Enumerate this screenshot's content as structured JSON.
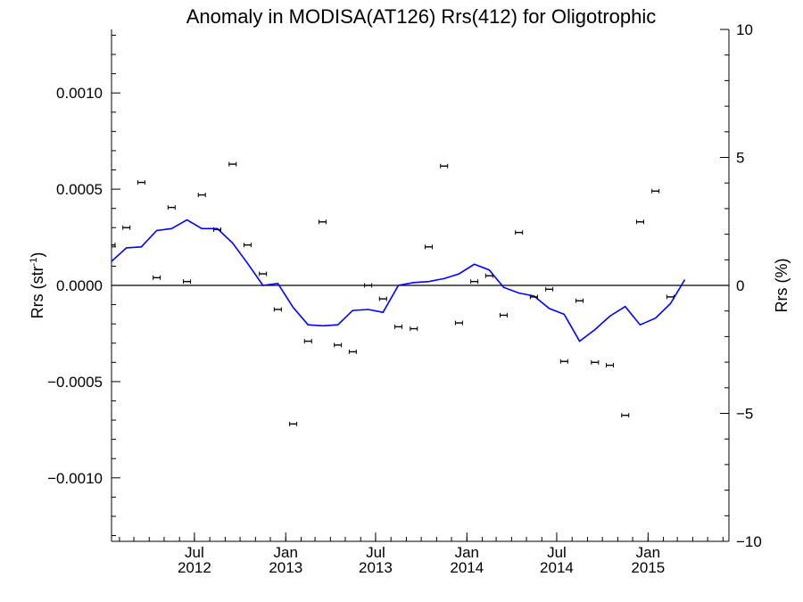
{
  "chart_data": {
    "type": "scatter",
    "title": "Anomaly in MODISA(AT126) Rrs(412) for Oligotrophic",
    "ylabel_main": "Rrs (str",
    "ylabel_sup": "-1",
    "ylabel_close": ")",
    "ylabel_right": "Rrs (%)",
    "ylim": [
      -0.00133,
      0.00133
    ],
    "ylim_right": [
      -10.0,
      10.0
    ],
    "xlim": [
      "2012-01-16",
      "2015-06-13"
    ],
    "left_ticks": [
      {
        "value": 0.001,
        "label": "0.0010"
      },
      {
        "value": 0.0005,
        "label": "0.0005"
      },
      {
        "value": 0.0,
        "label": "0.0000"
      },
      {
        "value": -0.0005,
        "label": "−0.0005"
      },
      {
        "value": -0.001,
        "label": "−0.0010"
      }
    ],
    "right_ticks": [
      {
        "value": 10,
        "label": "10"
      },
      {
        "value": 5,
        "label": "5"
      },
      {
        "value": 0,
        "label": "0"
      },
      {
        "value": -5,
        "label": "−5"
      },
      {
        "value": -10,
        "label": "−10"
      }
    ],
    "x_ticks": [
      {
        "date": "2012-07-01",
        "month": "Jul",
        "year": "2012"
      },
      {
        "date": "2013-01-01",
        "month": "Jan",
        "year": "2013"
      },
      {
        "date": "2013-07-01",
        "month": "Jul",
        "year": "2013"
      },
      {
        "date": "2014-01-01",
        "month": "Jan",
        "year": "2014"
      },
      {
        "date": "2014-07-01",
        "month": "Jul",
        "year": "2014"
      },
      {
        "date": "2015-01-01",
        "month": "Jan",
        "year": "2015"
      }
    ],
    "zero_line": 0.0,
    "series": [
      {
        "kind": "points_with_error_bars",
        "color": "#000000",
        "points": [
          {
            "x": "2012-01-16",
            "y": 0.00021
          },
          {
            "x": "2012-02-15",
            "y": 0.0003
          },
          {
            "x": "2012-03-16",
            "y": 0.000535
          },
          {
            "x": "2012-04-16",
            "y": 4e-05
          },
          {
            "x": "2012-05-16",
            "y": 0.000405
          },
          {
            "x": "2012-06-16",
            "y": 2e-05
          },
          {
            "x": "2012-07-16",
            "y": 0.00047
          },
          {
            "x": "2012-08-16",
            "y": 0.00029
          },
          {
            "x": "2012-09-16",
            "y": 0.00063
          },
          {
            "x": "2012-10-16",
            "y": 0.00021
          },
          {
            "x": "2012-11-16",
            "y": 6e-05
          },
          {
            "x": "2012-12-16",
            "y": -0.000125
          },
          {
            "x": "2013-01-16",
            "y": -0.00072
          },
          {
            "x": "2013-02-15",
            "y": -0.00029
          },
          {
            "x": "2013-03-16",
            "y": 0.00033
          },
          {
            "x": "2013-04-16",
            "y": -0.00031
          },
          {
            "x": "2013-05-16",
            "y": -0.000345
          },
          {
            "x": "2013-06-16",
            "y": 0.0
          },
          {
            "x": "2013-07-16",
            "y": -7e-05
          },
          {
            "x": "2013-08-16",
            "y": -0.000215
          },
          {
            "x": "2013-09-16",
            "y": -0.000225
          },
          {
            "x": "2013-10-16",
            "y": 0.0002
          },
          {
            "x": "2013-11-16",
            "y": 0.00062
          },
          {
            "x": "2013-12-16",
            "y": -0.000195
          },
          {
            "x": "2014-01-16",
            "y": 2e-05
          },
          {
            "x": "2014-02-15",
            "y": 5e-05
          },
          {
            "x": "2014-03-16",
            "y": -0.000155
          },
          {
            "x": "2014-04-16",
            "y": 0.000275
          },
          {
            "x": "2014-05-16",
            "y": -6e-05
          },
          {
            "x": "2014-06-16",
            "y": -2e-05
          },
          {
            "x": "2014-07-16",
            "y": -0.000395
          },
          {
            "x": "2014-08-16",
            "y": -8e-05
          },
          {
            "x": "2014-09-16",
            "y": -0.0004
          },
          {
            "x": "2014-10-16",
            "y": -0.000415
          },
          {
            "x": "2014-11-16",
            "y": -0.000675
          },
          {
            "x": "2014-12-16",
            "y": 0.00033
          },
          {
            "x": "2015-01-16",
            "y": 0.00049
          },
          {
            "x": "2015-02-15",
            "y": -6e-05
          }
        ]
      },
      {
        "kind": "line",
        "color": "#0000ff",
        "points": [
          {
            "x": "2012-01-16",
            "y": 0.000125
          },
          {
            "x": "2012-02-15",
            "y": 0.000195
          },
          {
            "x": "2012-03-16",
            "y": 0.0002
          },
          {
            "x": "2012-04-16",
            "y": 0.000285
          },
          {
            "x": "2012-05-16",
            "y": 0.000295
          },
          {
            "x": "2012-06-16",
            "y": 0.00034
          },
          {
            "x": "2012-07-16",
            "y": 0.000295
          },
          {
            "x": "2012-08-16",
            "y": 0.000295
          },
          {
            "x": "2012-09-16",
            "y": 0.00022
          },
          {
            "x": "2012-10-16",
            "y": 0.000115
          },
          {
            "x": "2012-11-16",
            "y": 0.0
          },
          {
            "x": "2012-12-16",
            "y": 1e-05
          },
          {
            "x": "2013-01-16",
            "y": -0.000115
          },
          {
            "x": "2013-02-15",
            "y": -0.000205
          },
          {
            "x": "2013-03-16",
            "y": -0.00021
          },
          {
            "x": "2013-04-16",
            "y": -0.000205
          },
          {
            "x": "2013-05-16",
            "y": -0.00013
          },
          {
            "x": "2013-06-16",
            "y": -0.000125
          },
          {
            "x": "2013-07-16",
            "y": -0.00014
          },
          {
            "x": "2013-08-16",
            "y": 0.0
          },
          {
            "x": "2013-09-16",
            "y": 1.5e-05
          },
          {
            "x": "2013-10-16",
            "y": 2e-05
          },
          {
            "x": "2013-11-16",
            "y": 3.5e-05
          },
          {
            "x": "2013-12-16",
            "y": 6e-05
          },
          {
            "x": "2014-01-16",
            "y": 0.00011
          },
          {
            "x": "2014-02-15",
            "y": 8e-05
          },
          {
            "x": "2014-03-16",
            "y": -1e-05
          },
          {
            "x": "2014-04-16",
            "y": -4e-05
          },
          {
            "x": "2014-05-16",
            "y": -5.5e-05
          },
          {
            "x": "2014-06-16",
            "y": -0.00012
          },
          {
            "x": "2014-07-16",
            "y": -0.00015
          },
          {
            "x": "2014-08-16",
            "y": -0.00029
          },
          {
            "x": "2014-09-16",
            "y": -0.00023
          },
          {
            "x": "2014-10-16",
            "y": -0.00016
          },
          {
            "x": "2014-11-16",
            "y": -0.00011
          },
          {
            "x": "2014-12-16",
            "y": -0.000205
          },
          {
            "x": "2015-01-16",
            "y": -0.00017
          },
          {
            "x": "2015-02-15",
            "y": -9.5e-05
          },
          {
            "x": "2015-03-16",
            "y": 3e-05
          }
        ]
      }
    ]
  }
}
